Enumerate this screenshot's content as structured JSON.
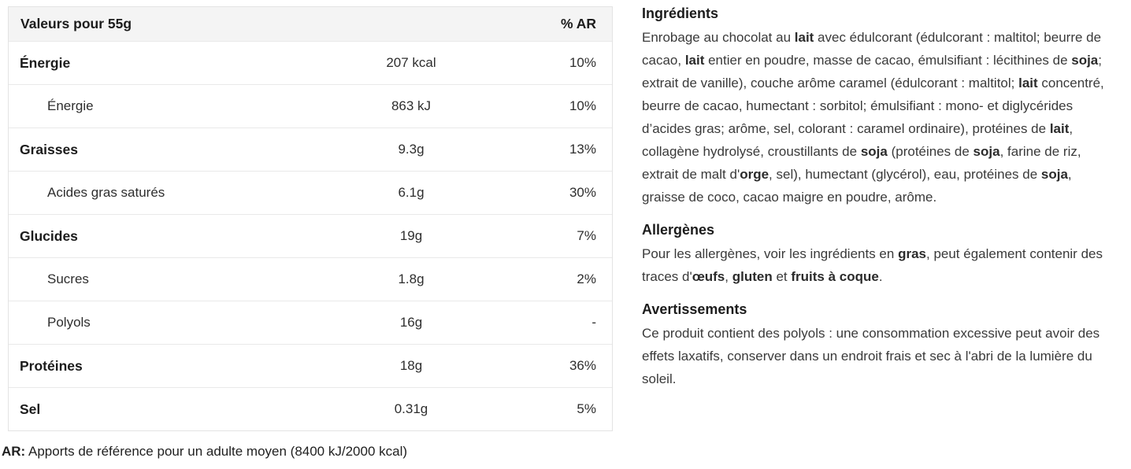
{
  "colors": {
    "background": "#ffffff",
    "table_header_bg": "#f4f4f4",
    "table_border": "#e3e3e3",
    "row_divider": "#e9e9e9",
    "text_primary": "#1c1c1c",
    "text_secondary": "#3a3a3a"
  },
  "nutrition_table": {
    "header": {
      "label": "Valeurs pour 55g",
      "amount": "",
      "percent": "% AR"
    },
    "rows": [
      {
        "label": "Énergie",
        "amount": "207 kcal",
        "percent": "10%",
        "level": "main"
      },
      {
        "label": "Énergie",
        "amount": "863 kJ",
        "percent": "10%",
        "level": "sub"
      },
      {
        "label": "Graisses",
        "amount": "9.3g",
        "percent": "13%",
        "level": "main"
      },
      {
        "label": "Acides gras saturés",
        "amount": "6.1g",
        "percent": "30%",
        "level": "sub"
      },
      {
        "label": "Glucides",
        "amount": "19g",
        "percent": "7%",
        "level": "main"
      },
      {
        "label": "Sucres",
        "amount": "1.8g",
        "percent": "2%",
        "level": "sub"
      },
      {
        "label": "Polyols",
        "amount": "16g",
        "percent": "-",
        "level": "sub"
      },
      {
        "label": "Protéines",
        "amount": "18g",
        "percent": "36%",
        "level": "main"
      },
      {
        "label": "Sel",
        "amount": "0.31g",
        "percent": "5%",
        "level": "main"
      }
    ],
    "footnote": {
      "prefix": "AR:",
      "text": " Apports de référence pour un adulte moyen (8400 kJ/2000 kcal)"
    }
  },
  "info": {
    "sections": [
      {
        "heading": "Ingrédients",
        "segments": [
          {
            "text": "Enrobage au chocolat au "
          },
          {
            "text": "lait",
            "bold": true
          },
          {
            "text": " avec édulcorant (édulcorant : maltitol; beurre de cacao, "
          },
          {
            "text": "lait",
            "bold": true
          },
          {
            "text": " entier en poudre, masse de cacao, émulsifiant : lécithines de "
          },
          {
            "text": "soja",
            "bold": true
          },
          {
            "text": "; extrait de vanille), couche arôme caramel (édulcorant : maltitol; "
          },
          {
            "text": "lait",
            "bold": true
          },
          {
            "text": " concentré, beurre de cacao, humectant : sorbitol; émulsifiant : mono- et diglycérides d’acides gras; arôme, sel, colorant : caramel ordinaire), protéines de "
          },
          {
            "text": "lait",
            "bold": true
          },
          {
            "text": ", collagène hydrolysé, croustillants de "
          },
          {
            "text": "soja",
            "bold": true
          },
          {
            "text": " (protéines de "
          },
          {
            "text": "soja",
            "bold": true
          },
          {
            "text": ", farine de riz, extrait de malt d'"
          },
          {
            "text": "orge",
            "bold": true
          },
          {
            "text": ", sel), humectant (glycérol), eau, protéines de "
          },
          {
            "text": "soja",
            "bold": true
          },
          {
            "text": ", graisse de coco, cacao maigre en poudre, arôme."
          }
        ]
      },
      {
        "heading": "Allergènes",
        "segments": [
          {
            "text": "Pour les allergènes, voir les ingrédients en "
          },
          {
            "text": "gras",
            "bold": true
          },
          {
            "text": ", peut également contenir des traces d'"
          },
          {
            "text": "œufs",
            "bold": true
          },
          {
            "text": ", "
          },
          {
            "text": "gluten",
            "bold": true
          },
          {
            "text": " et "
          },
          {
            "text": "fruits à coque",
            "bold": true
          },
          {
            "text": "."
          }
        ]
      },
      {
        "heading": "Avertissements",
        "segments": [
          {
            "text": "Ce produit contient des polyols : une consommation excessive peut avoir des effets laxatifs, conserver dans un endroit frais et sec à l'abri de la lumière du soleil."
          }
        ]
      }
    ]
  }
}
